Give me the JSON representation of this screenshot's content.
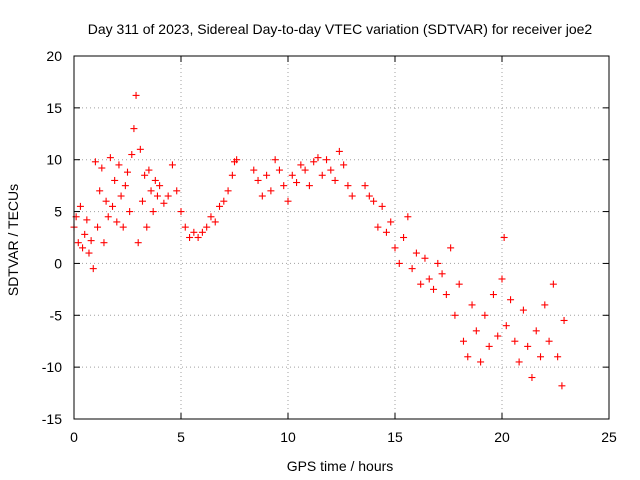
{
  "chart_data": {
    "type": "scatter",
    "title": "Day 311 of 2023, Sidereal Day-to-day VTEC variation (SDTVAR) for receiver joe2",
    "xlabel": "GPS time / hours",
    "ylabel": "SDTVAR / TECUs",
    "xlim": [
      0,
      25
    ],
    "ylim": [
      -15,
      20
    ],
    "xticks": [
      0,
      5,
      10,
      15,
      20,
      25
    ],
    "yticks": [
      -15,
      -10,
      -5,
      0,
      5,
      10,
      15,
      20
    ],
    "grid": true,
    "marker": "+",
    "color": "#ff0000",
    "series": [
      {
        "name": "joe2",
        "points": [
          [
            0.0,
            3.5
          ],
          [
            0.1,
            4.5
          ],
          [
            0.2,
            2.0
          ],
          [
            0.3,
            5.5
          ],
          [
            0.4,
            1.5
          ],
          [
            0.5,
            2.8
          ],
          [
            0.6,
            4.2
          ],
          [
            0.7,
            1.0
          ],
          [
            0.8,
            2.2
          ],
          [
            0.9,
            -0.5
          ],
          [
            1.0,
            9.8
          ],
          [
            1.1,
            3.5
          ],
          [
            1.2,
            7.0
          ],
          [
            1.3,
            9.2
          ],
          [
            1.4,
            2.0
          ],
          [
            1.5,
            6.0
          ],
          [
            1.6,
            4.5
          ],
          [
            1.7,
            10.2
          ],
          [
            1.8,
            5.5
          ],
          [
            1.9,
            8.0
          ],
          [
            2.0,
            4.0
          ],
          [
            2.1,
            9.5
          ],
          [
            2.2,
            6.5
          ],
          [
            2.3,
            3.5
          ],
          [
            2.4,
            7.5
          ],
          [
            2.5,
            8.8
          ],
          [
            2.6,
            5.0
          ],
          [
            2.7,
            10.5
          ],
          [
            2.8,
            13.0
          ],
          [
            2.9,
            16.2
          ],
          [
            3.0,
            2.0
          ],
          [
            3.1,
            11.0
          ],
          [
            3.2,
            6.0
          ],
          [
            3.3,
            8.5
          ],
          [
            3.4,
            3.5
          ],
          [
            3.5,
            9.0
          ],
          [
            3.6,
            7.0
          ],
          [
            3.7,
            5.0
          ],
          [
            3.8,
            8.0
          ],
          [
            3.9,
            6.5
          ],
          [
            4.0,
            7.5
          ],
          [
            4.2,
            5.8
          ],
          [
            4.4,
            6.5
          ],
          [
            4.6,
            9.5
          ],
          [
            4.8,
            7.0
          ],
          [
            5.0,
            5.0
          ],
          [
            5.2,
            3.5
          ],
          [
            5.4,
            2.5
          ],
          [
            5.6,
            3.0
          ],
          [
            5.8,
            2.5
          ],
          [
            6.0,
            3.0
          ],
          [
            6.2,
            3.5
          ],
          [
            6.4,
            4.5
          ],
          [
            6.6,
            4.0
          ],
          [
            6.8,
            5.5
          ],
          [
            7.0,
            6.0
          ],
          [
            7.2,
            7.0
          ],
          [
            7.4,
            8.5
          ],
          [
            7.5,
            9.8
          ],
          [
            7.6,
            10.0
          ],
          [
            8.4,
            9.0
          ],
          [
            8.6,
            8.0
          ],
          [
            8.8,
            6.5
          ],
          [
            9.0,
            8.5
          ],
          [
            9.2,
            7.0
          ],
          [
            9.4,
            10.0
          ],
          [
            9.6,
            9.0
          ],
          [
            9.8,
            7.5
          ],
          [
            10.0,
            6.0
          ],
          [
            10.2,
            8.5
          ],
          [
            10.4,
            7.8
          ],
          [
            10.6,
            9.5
          ],
          [
            10.8,
            9.0
          ],
          [
            11.0,
            7.5
          ],
          [
            11.2,
            9.8
          ],
          [
            11.4,
            10.2
          ],
          [
            11.6,
            8.5
          ],
          [
            11.8,
            10.0
          ],
          [
            12.0,
            9.0
          ],
          [
            12.2,
            8.0
          ],
          [
            12.4,
            10.8
          ],
          [
            12.6,
            9.5
          ],
          [
            12.8,
            7.5
          ],
          [
            13.0,
            6.5
          ],
          [
            13.6,
            7.5
          ],
          [
            13.8,
            6.5
          ],
          [
            14.0,
            6.0
          ],
          [
            14.2,
            3.5
          ],
          [
            14.4,
            5.5
          ],
          [
            14.6,
            3.0
          ],
          [
            14.8,
            4.0
          ],
          [
            15.0,
            1.5
          ],
          [
            15.2,
            0.0
          ],
          [
            15.4,
            2.5
          ],
          [
            15.6,
            4.5
          ],
          [
            15.8,
            -0.5
          ],
          [
            16.0,
            1.0
          ],
          [
            16.2,
            -2.0
          ],
          [
            16.4,
            0.5
          ],
          [
            16.6,
            -1.5
          ],
          [
            16.8,
            -2.5
          ],
          [
            17.0,
            0.0
          ],
          [
            17.2,
            -1.0
          ],
          [
            17.4,
            -3.0
          ],
          [
            17.6,
            1.5
          ],
          [
            17.8,
            -5.0
          ],
          [
            18.0,
            -2.0
          ],
          [
            18.2,
            -7.5
          ],
          [
            18.4,
            -9.0
          ],
          [
            18.6,
            -4.0
          ],
          [
            18.8,
            -6.5
          ],
          [
            19.0,
            -9.5
          ],
          [
            19.2,
            -5.0
          ],
          [
            19.4,
            -8.0
          ],
          [
            19.6,
            -3.0
          ],
          [
            19.8,
            -7.0
          ],
          [
            20.0,
            -1.5
          ],
          [
            20.1,
            2.5
          ],
          [
            20.2,
            -6.0
          ],
          [
            20.4,
            -3.5
          ],
          [
            20.6,
            -7.5
          ],
          [
            20.8,
            -9.5
          ],
          [
            21.0,
            -4.5
          ],
          [
            21.2,
            -8.0
          ],
          [
            21.4,
            -11.0
          ],
          [
            21.6,
            -6.5
          ],
          [
            21.8,
            -9.0
          ],
          [
            22.0,
            -4.0
          ],
          [
            22.2,
            -7.5
          ],
          [
            22.4,
            -2.0
          ],
          [
            22.6,
            -9.0
          ],
          [
            22.8,
            -11.8
          ],
          [
            22.9,
            -5.5
          ]
        ]
      }
    ]
  }
}
